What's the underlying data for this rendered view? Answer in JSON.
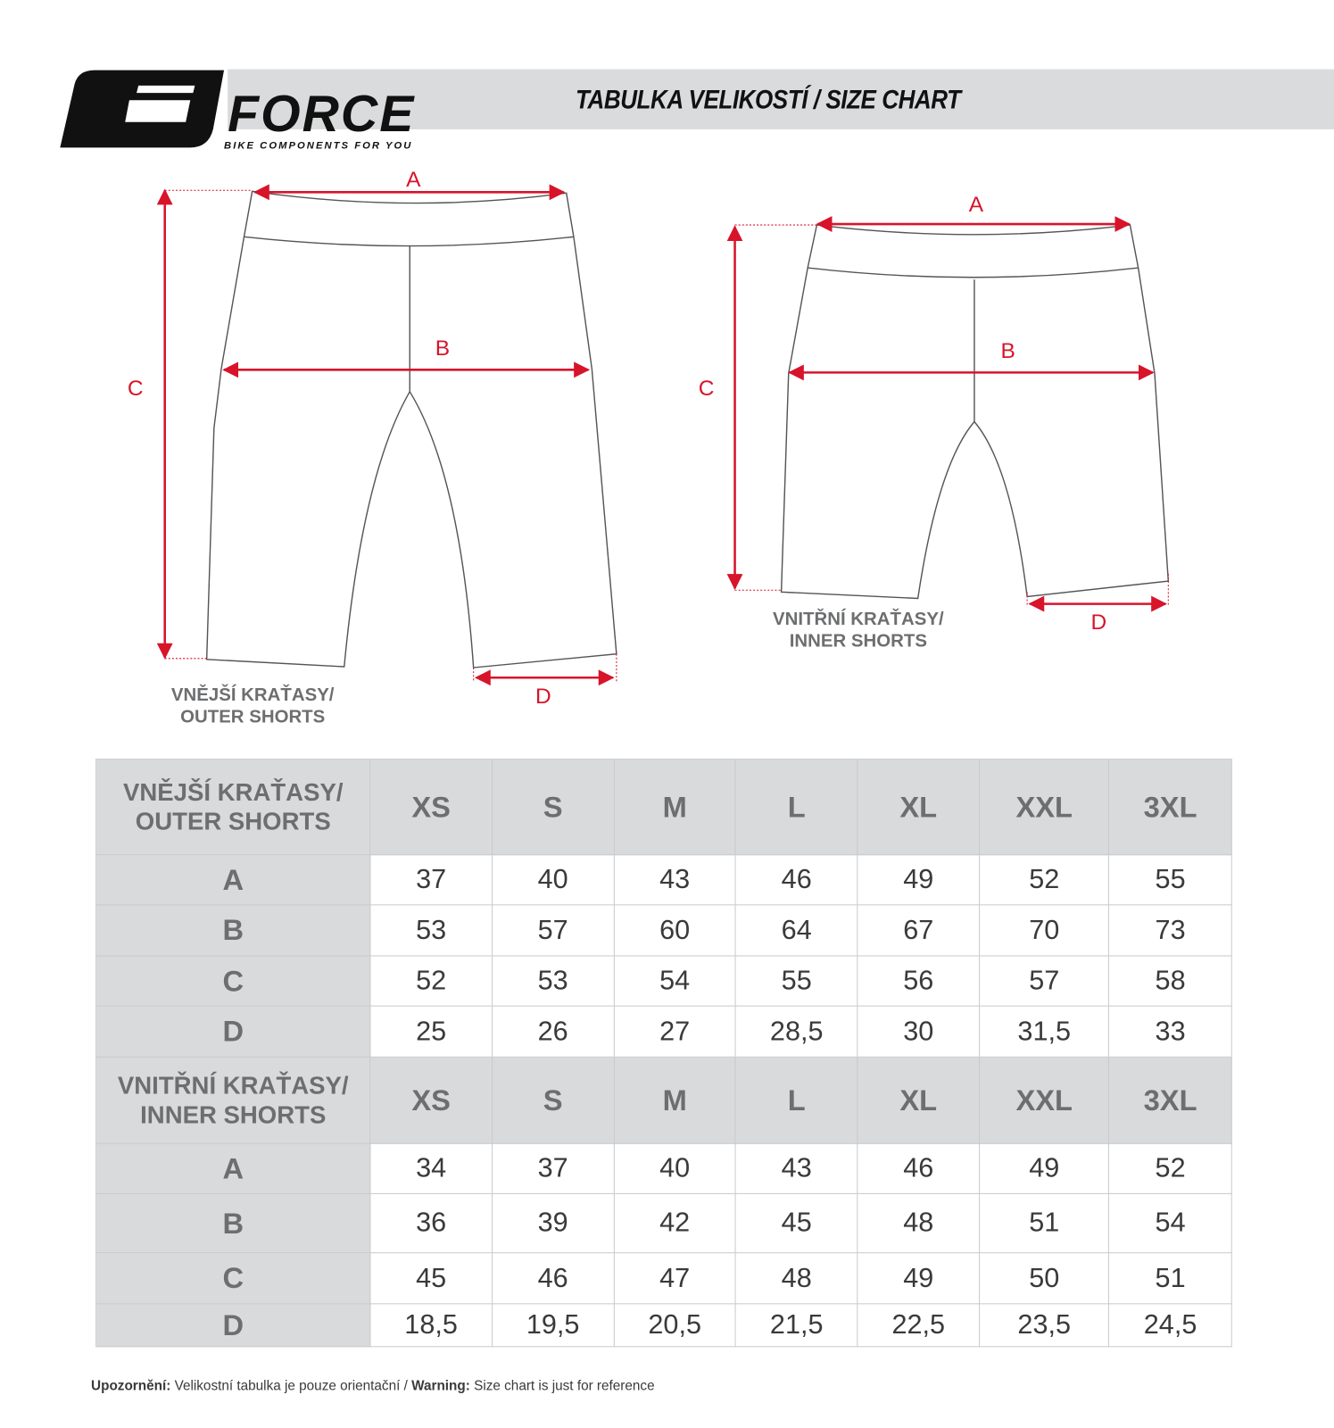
{
  "header": {
    "brand": "FORCE",
    "tagline": "BIKE COMPONENTS FOR YOU",
    "title": "TABULKA VELIKOSTÍ / SIZE CHART"
  },
  "diagrams": {
    "outer": {
      "label_line1": "VNĚJŠÍ KRAŤASY/",
      "label_line2": "OUTER SHORTS",
      "a": "A",
      "b": "B",
      "c": "C",
      "d": "D"
    },
    "inner": {
      "label_line1": "VNITŘNÍ KRAŤASY/",
      "label_line2": "INNER SHORTS",
      "a": "A",
      "b": "B",
      "c": "C",
      "d": "D"
    }
  },
  "colors": {
    "accent": "#d7142a",
    "header_gray": "#dadbdc",
    "label_gray": "#6d6e70"
  },
  "table": {
    "sections": [
      {
        "title_line1": "VNĚJŠÍ KRAŤASY/",
        "title_line2": "OUTER SHORTS",
        "sizes": [
          "XS",
          "S",
          "M",
          "L",
          "XL",
          "XXL",
          "3XL"
        ],
        "rows": [
          {
            "label": "A",
            "values": [
              "37",
              "40",
              "43",
              "46",
              "49",
              "52",
              "55"
            ]
          },
          {
            "label": "B",
            "values": [
              "53",
              "57",
              "60",
              "64",
              "67",
              "70",
              "73"
            ]
          },
          {
            "label": "C",
            "values": [
              "52",
              "53",
              "54",
              "55",
              "56",
              "57",
              "58"
            ]
          },
          {
            "label": "D",
            "values": [
              "25",
              "26",
              "27",
              "28,5",
              "30",
              "31,5",
              "33"
            ]
          }
        ]
      },
      {
        "title_line1": "VNITŘNÍ KRAŤASY/",
        "title_line2": "INNER SHORTS",
        "sizes": [
          "XS",
          "S",
          "M",
          "L",
          "XL",
          "XXL",
          "3XL"
        ],
        "rows": [
          {
            "label": "A",
            "values": [
              "34",
              "37",
              "40",
              "43",
              "46",
              "49",
              "52"
            ]
          },
          {
            "label": "B",
            "values": [
              "36",
              "39",
              "42",
              "45",
              "48",
              "51",
              "54"
            ]
          },
          {
            "label": "C",
            "values": [
              "45",
              "46",
              "47",
              "48",
              "49",
              "50",
              "51"
            ]
          },
          {
            "label": "D",
            "values": [
              "18,5",
              "19,5",
              "20,5",
              "21,5",
              "22,5",
              "23,5",
              "24,5"
            ]
          }
        ]
      }
    ]
  },
  "footer": {
    "warning_cz_label": "Upozornění:",
    "warning_cz": "Velikostní tabulka je pouze orientační /",
    "warning_en_label": "Warning:",
    "warning_en": "Size chart is just for reference"
  }
}
